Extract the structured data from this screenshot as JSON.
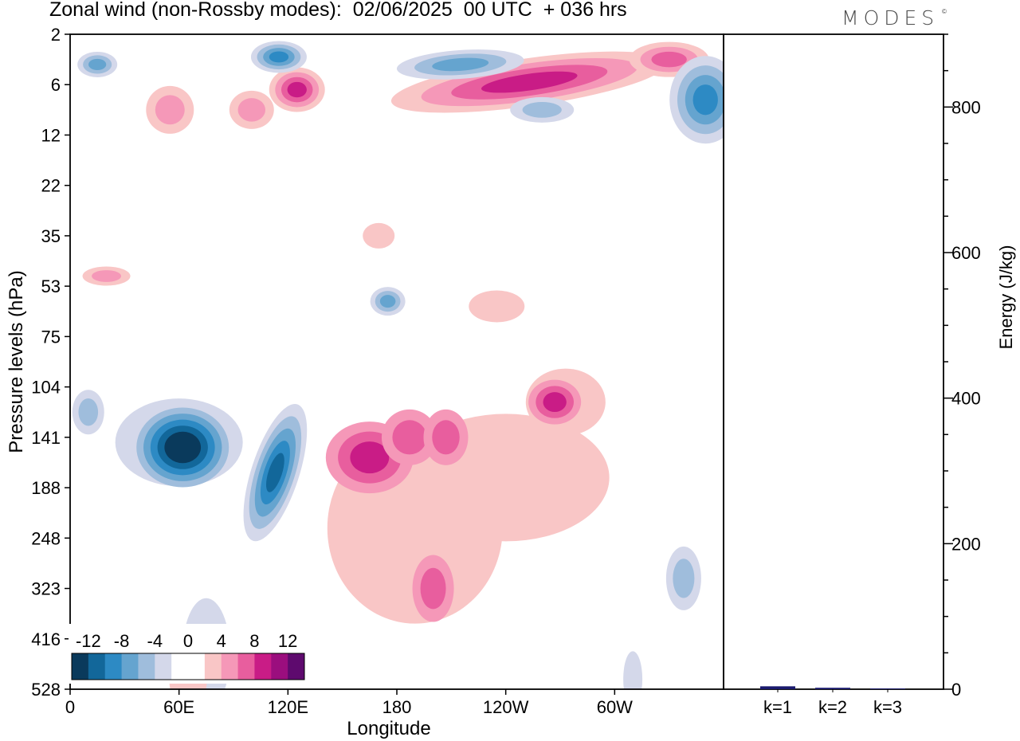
{
  "title": "Zonal wind (non-Rossby modes):  02/06/2025  00 UTC  + 036 hrs",
  "logo": "MODES",
  "logo_mark": "©",
  "chart_data": [
    {
      "type": "heatmap",
      "title": "Zonal wind (non-Rossby modes):  02/06/2025  00 UTC  + 036 hrs",
      "xlabel": "Longitude",
      "ylabel": "Pressure levels (hPa)",
      "x_ticks": [
        "0",
        "60E",
        "120E",
        "180",
        "120W",
        "60W"
      ],
      "x_tick_values": [
        0,
        60,
        120,
        180,
        240,
        300
      ],
      "xlim": [
        0,
        360
      ],
      "y_ticks": [
        "2",
        "6",
        "12",
        "22",
        "35",
        "53",
        "75",
        "104",
        "141",
        "188",
        "248",
        "323",
        "416",
        "528"
      ],
      "colorbar": {
        "labels": [
          "-12",
          "-8",
          "-4",
          "0",
          "4",
          "8",
          "12"
        ],
        "colors": [
          "#0a3a5c",
          "#12679a",
          "#2d8ac4",
          "#65a4cf",
          "#9fbddc",
          "#d4d8ea",
          "#ffffff",
          "#ffffff",
          "#f9c6c6",
          "#f598b8",
          "#e85e9e",
          "#c91c86",
          "#9b0e7e",
          "#5e0a6e"
        ]
      },
      "features": [
        {
          "name": "negative-core-60E",
          "lon": 62,
          "level": "141",
          "value": -13
        },
        {
          "name": "negative-band-110E",
          "lon": 110,
          "level": "188",
          "value": -9
        },
        {
          "name": "positive-core-160E",
          "lon": 160,
          "level": "141",
          "value": 9
        },
        {
          "name": "positive-core-95W",
          "lon": 265,
          "level": "104",
          "value": 10
        },
        {
          "name": "positive-band-stratosphere",
          "lon": 240,
          "level": "6",
          "value": 9
        },
        {
          "name": "negative-upper-east",
          "lon": 350,
          "level": "6",
          "value": -7
        }
      ]
    },
    {
      "type": "bar",
      "ylabel": "Energy (J/kg)",
      "ylim": [
        0,
        900
      ],
      "y_ticks": [
        0,
        200,
        400,
        600,
        800
      ],
      "categories": [
        "k=1",
        "k=2",
        "k=3"
      ],
      "values": [
        4,
        2,
        1
      ],
      "bar_color": "#1a1a6e"
    }
  ]
}
